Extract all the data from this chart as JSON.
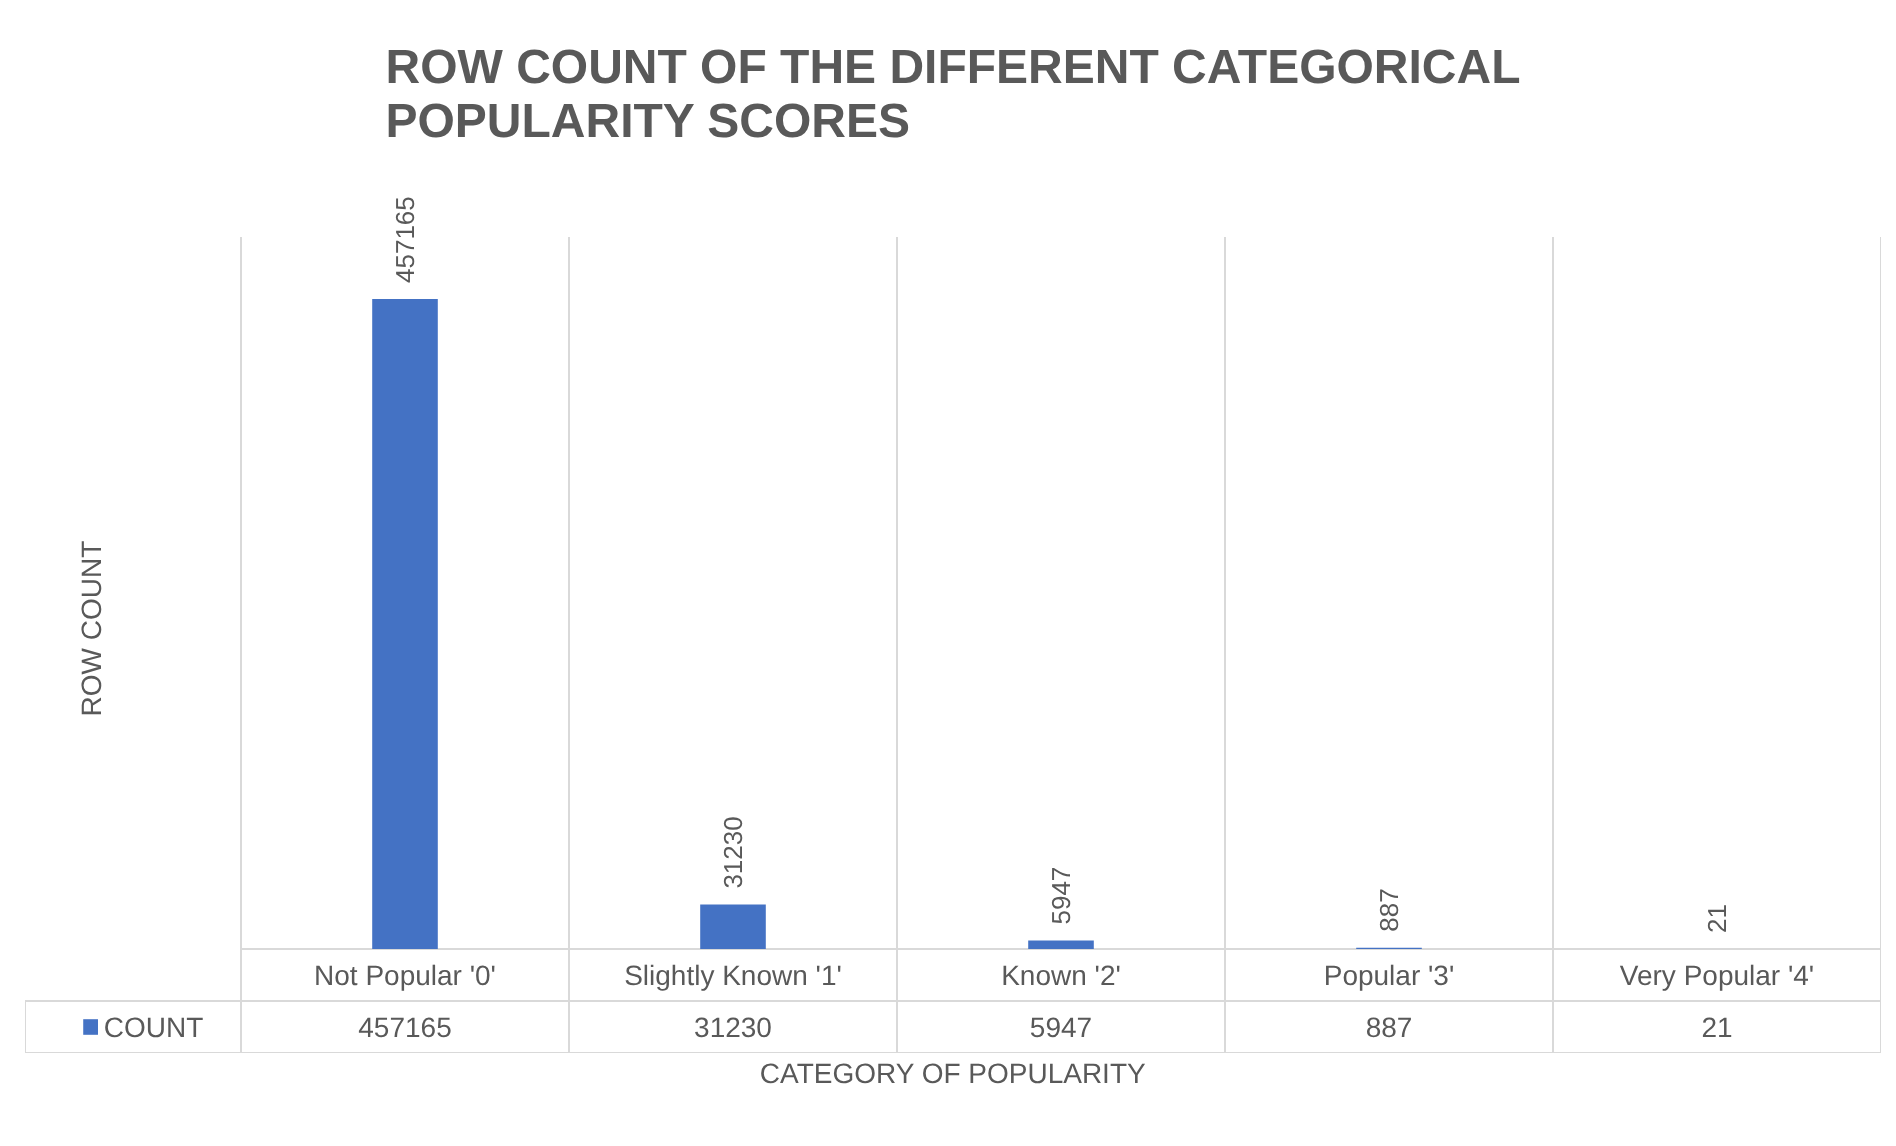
{
  "chart_data": {
    "type": "bar",
    "title": "ROW COUNT OF THE DIFFERENT CATEGORICAL POPULARITY SCORES",
    "xlabel": "CATEGORY OF POPULARITY",
    "ylabel": "ROW COUNT",
    "categories": [
      "Not Popular '0'",
      "Slightly Known '1'",
      "Known '2'",
      "Popular '3'",
      "Very Popular '4'"
    ],
    "series": [
      {
        "name": "COUNT",
        "color": "#4472c4",
        "values": [
          457165,
          31230,
          5947,
          887,
          21
        ],
        "value_labels": [
          "457165",
          "31230",
          "5947",
          "887",
          "21"
        ]
      }
    ],
    "data_labels": true,
    "grid": "x"
  }
}
